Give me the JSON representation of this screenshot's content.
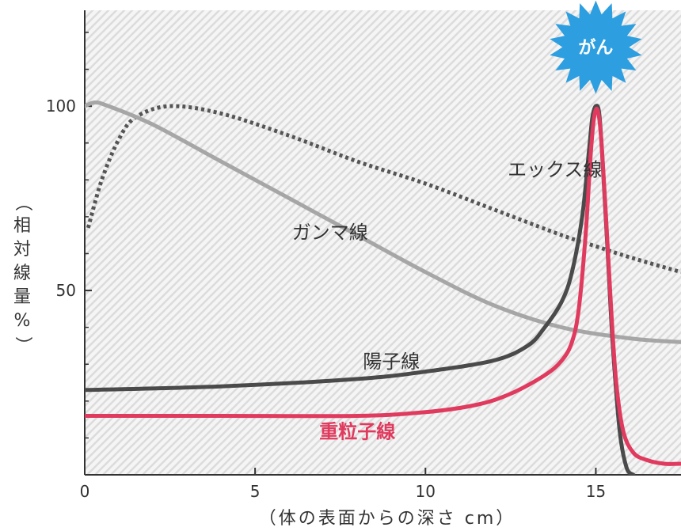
{
  "colors": {
    "xray": "#555555",
    "gamma": "#a6a6a6",
    "proton": "#4a4a4a",
    "heavy_ion": "#e03a5e",
    "cancer_badge": "#2d9fe0",
    "hatch": "#dcdcdc"
  },
  "chart_data": {
    "type": "line",
    "title": "",
    "xlabel": "（体の表面からの深さ cm）",
    "ylabel": "（相対線量%）",
    "ylabel_chars": [
      "（",
      "相",
      "対",
      "線",
      "量",
      "%",
      "）"
    ],
    "xlim": [
      0,
      17.5
    ],
    "ylim": [
      0,
      126
    ],
    "x_ticks": [
      {
        "value": 0,
        "label": "0"
      },
      {
        "value": 5,
        "label": "5"
      },
      {
        "value": 10,
        "label": "10"
      },
      {
        "value": 15,
        "label": "15"
      }
    ],
    "y_ticks": [
      {
        "value": 50,
        "label": "50"
      },
      {
        "value": 100,
        "label": "100"
      }
    ],
    "grid": false,
    "legend": "none",
    "annotation": {
      "label": "がん",
      "x": 15,
      "y": 116
    },
    "series": [
      {
        "name": "エックス線",
        "style": "dotted",
        "label_at": {
          "x": 13.8,
          "y": 81
        },
        "points": [
          [
            0.1,
            67
          ],
          [
            0.5,
            80
          ],
          [
            1.0,
            91
          ],
          [
            1.5,
            97
          ],
          [
            2.5,
            100
          ],
          [
            4,
            98
          ],
          [
            6,
            92
          ],
          [
            8,
            85
          ],
          [
            10,
            79
          ],
          [
            12,
            72
          ],
          [
            14,
            65
          ],
          [
            15,
            62
          ],
          [
            16,
            59
          ],
          [
            17.5,
            55
          ]
        ]
      },
      {
        "name": "ガンマ線",
        "style": "solid",
        "label_at": {
          "x": 7.2,
          "y": 64
        },
        "points": [
          [
            0,
            100
          ],
          [
            0.3,
            101
          ],
          [
            0.7,
            100
          ],
          [
            2,
            95
          ],
          [
            4,
            85
          ],
          [
            6,
            75
          ],
          [
            8,
            65
          ],
          [
            10,
            55
          ],
          [
            12,
            46
          ],
          [
            14,
            40
          ],
          [
            16,
            37
          ],
          [
            17.5,
            36
          ]
        ]
      },
      {
        "name": "陽子線",
        "style": "solid",
        "label_at": {
          "x": 9.0,
          "y": 29
        },
        "points": [
          [
            0,
            23
          ],
          [
            4,
            24
          ],
          [
            8,
            26
          ],
          [
            10,
            28
          ],
          [
            12,
            31
          ],
          [
            13,
            35
          ],
          [
            13.5,
            40
          ],
          [
            14,
            47
          ],
          [
            14.3,
            55
          ],
          [
            14.6,
            70
          ],
          [
            14.8,
            88
          ],
          [
            14.9,
            97
          ],
          [
            15,
            100
          ],
          [
            15.1,
            98
          ],
          [
            15.2,
            85
          ],
          [
            15.35,
            60
          ],
          [
            15.5,
            35
          ],
          [
            15.7,
            12
          ],
          [
            15.9,
            2
          ],
          [
            16.1,
            0
          ]
        ]
      },
      {
        "name": "重粒子線",
        "style": "solid",
        "label_at": {
          "x": 8.0,
          "y": 10
        },
        "points": [
          [
            0,
            16
          ],
          [
            4,
            16
          ],
          [
            8,
            16
          ],
          [
            10,
            17
          ],
          [
            11.5,
            19
          ],
          [
            12.5,
            22
          ],
          [
            13.5,
            27
          ],
          [
            14,
            31
          ],
          [
            14.3,
            36
          ],
          [
            14.5,
            45
          ],
          [
            14.7,
            65
          ],
          [
            14.85,
            87
          ],
          [
            14.95,
            97
          ],
          [
            15.05,
            99
          ],
          [
            15.15,
            92
          ],
          [
            15.3,
            70
          ],
          [
            15.45,
            45
          ],
          [
            15.6,
            25
          ],
          [
            15.8,
            12
          ],
          [
            16.1,
            6
          ],
          [
            16.5,
            4
          ],
          [
            17,
            3
          ],
          [
            17.5,
            3
          ]
        ]
      }
    ]
  }
}
